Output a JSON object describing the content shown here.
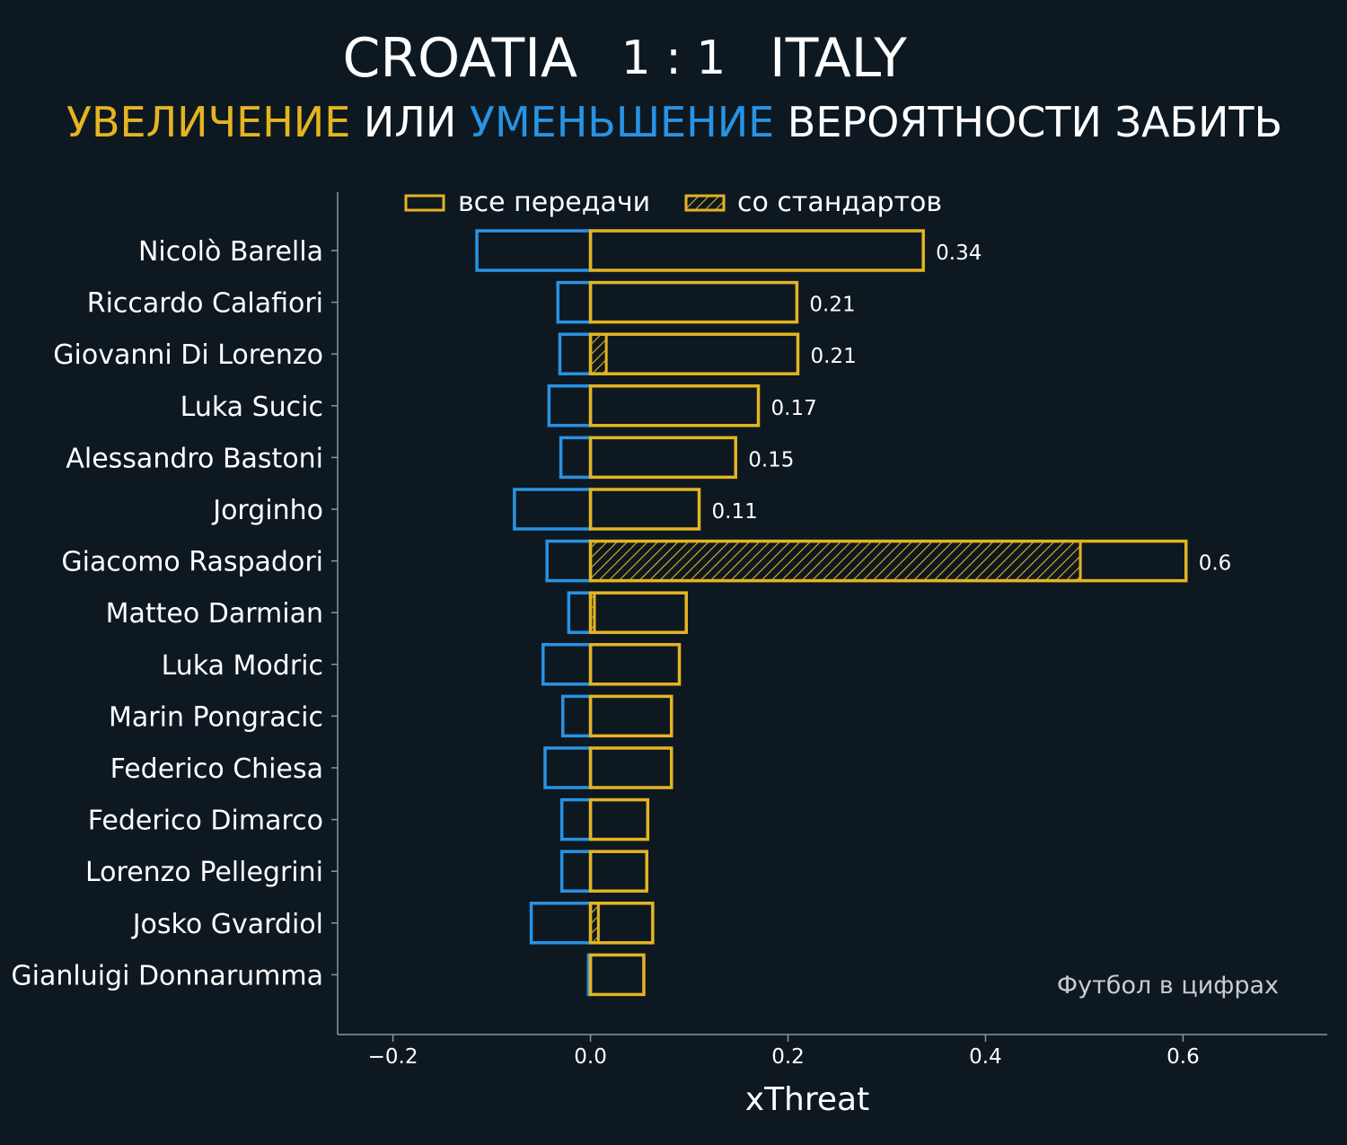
{
  "chart_data": {
    "type": "bar",
    "title": {
      "home_team": "CROATIA",
      "score": "1 : 1",
      "away_team": "ITALY"
    },
    "subtitle": {
      "part1": "УВЕЛИЧЕНИЕ",
      "part2": " ИЛИ ",
      "part3": "УМЕНЬШЕНИЕ",
      "part4": " ВЕРОЯТНОСТИ ЗАБИТЬ"
    },
    "legend": {
      "all_passes": "все передачи",
      "set_pieces": "со стандартов",
      "placement": "top"
    },
    "xlabel": "xThreat",
    "xlim": [
      -0.256,
      0.746
    ],
    "xticks": [
      -0.2,
      0.0,
      0.2,
      0.4,
      0.6
    ],
    "xtick_labels": [
      "−0.2",
      "0.0",
      "0.2",
      "0.4",
      "0.6"
    ],
    "watermark": "Футбол в цифрах",
    "colors": {
      "background": "#0e1820",
      "increase": "#e4b422",
      "decrease": "#2893e4",
      "text": "#ffffff",
      "axis": "#8a969e",
      "watermark": "#c9cdd0"
    },
    "players": [
      {
        "name": "Nicolò Barella",
        "positive": 0.337,
        "negative": -0.115,
        "set_pieces": 0.0,
        "label": "0.34"
      },
      {
        "name": "Riccardo Calafiori",
        "positive": 0.209,
        "negative": -0.033,
        "set_pieces": 0.0,
        "label": "0.21"
      },
      {
        "name": "Giovanni Di Lorenzo",
        "positive": 0.21,
        "negative": -0.031,
        "set_pieces": 0.016,
        "label": "0.21"
      },
      {
        "name": "Luka Sucic",
        "positive": 0.17,
        "negative": -0.042,
        "set_pieces": 0.0,
        "label": "0.17"
      },
      {
        "name": "Alessandro Bastoni",
        "positive": 0.147,
        "negative": -0.03,
        "set_pieces": 0.0,
        "label": "0.15"
      },
      {
        "name": "Jorginho",
        "positive": 0.11,
        "negative": -0.077,
        "set_pieces": 0.0,
        "label": "0.11"
      },
      {
        "name": "Giacomo Raspadori",
        "positive": 0.603,
        "negative": -0.044,
        "set_pieces": 0.496,
        "label": "0.6"
      },
      {
        "name": "Matteo Darmian",
        "positive": 0.097,
        "negative": -0.022,
        "set_pieces": 0.004,
        "label": ""
      },
      {
        "name": "Luka Modric",
        "positive": 0.09,
        "negative": -0.048,
        "set_pieces": 0.0,
        "label": ""
      },
      {
        "name": "Marin Pongracic",
        "positive": 0.082,
        "negative": -0.028,
        "set_pieces": 0.0,
        "label": ""
      },
      {
        "name": "Federico Chiesa",
        "positive": 0.082,
        "negative": -0.046,
        "set_pieces": 0.0,
        "label": ""
      },
      {
        "name": "Federico Dimarco",
        "positive": 0.058,
        "negative": -0.029,
        "set_pieces": 0.0,
        "label": ""
      },
      {
        "name": "Lorenzo Pellegrini",
        "positive": 0.057,
        "negative": -0.029,
        "set_pieces": 0.0,
        "label": ""
      },
      {
        "name": "Josko Gvardiol",
        "positive": 0.063,
        "negative": -0.06,
        "set_pieces": 0.008,
        "label": ""
      },
      {
        "name": "Gianluigi Donnarumma",
        "positive": 0.054,
        "negative": -0.002,
        "set_pieces": 0.0,
        "label": ""
      }
    ]
  }
}
